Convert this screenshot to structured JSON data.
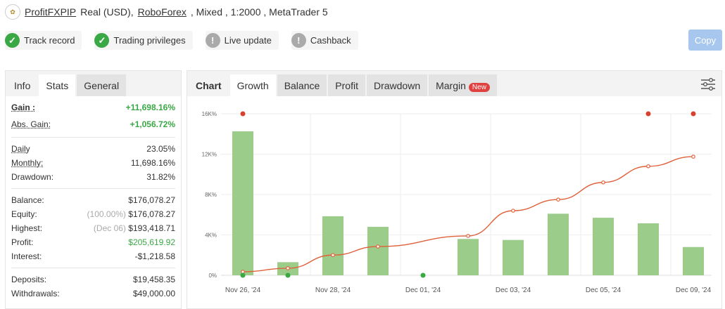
{
  "header": {
    "account": "ProfitFXPIP",
    "type": "Real (USD),",
    "broker": "RoboForex",
    "details": ", Mixed , 1:2000 , MetaTrader 5"
  },
  "badges": [
    {
      "label": "Track record",
      "status": "ok"
    },
    {
      "label": "Trading privileges",
      "status": "ok"
    },
    {
      "label": "Live update",
      "status": "warn"
    },
    {
      "label": "Cashback",
      "status": "warn"
    }
  ],
  "copy_label": "Copy",
  "left_tabs": [
    "Info",
    "Stats",
    "General"
  ],
  "stats": {
    "gain": {
      "label": "Gain :",
      "value": "+11,698.16%"
    },
    "abs_gain": {
      "label": "Abs. Gain:",
      "value": "+1,056.72%"
    },
    "daily": {
      "label": "Daily",
      "value": "23.05%"
    },
    "monthly": {
      "label": "Monthly:",
      "value": "11,698.16%"
    },
    "drawdown": {
      "label": "Drawdown:",
      "value": "31.82%"
    },
    "balance": {
      "label": "Balance:",
      "value": "$176,078.27"
    },
    "equity": {
      "label": "Equity:",
      "note": "(100.00%)",
      "value": "$176,078.27"
    },
    "highest": {
      "label": "Highest:",
      "note": "(Dec 06)",
      "value": "$193,418.71"
    },
    "profit": {
      "label": "Profit:",
      "value": "$205,619.92"
    },
    "interest": {
      "label": "Interest:",
      "value": "-$1,218.58"
    },
    "deposits": {
      "label": "Deposits:",
      "value": "$19,458.35"
    },
    "withdrawals": {
      "label": "Withdrawals:",
      "value": "$49,000.00"
    }
  },
  "chart_tabs": {
    "chart": "Chart",
    "growth": "Growth",
    "balance": "Balance",
    "profit": "Profit",
    "drawdown": "Drawdown",
    "margin": "Margin",
    "new_badge": "New"
  },
  "colors": {
    "bar": "#9ccc8a",
    "line": "#e0603a",
    "red_marker": "#d9412f",
    "green_marker": "#3aa845",
    "copy": "#a7c7ee"
  },
  "chart_data": {
    "type": "bar",
    "ylim": [
      0,
      16000
    ],
    "yticks": [
      {
        "v": 0,
        "label": "0%"
      },
      {
        "v": 4000,
        "label": "4K%"
      },
      {
        "v": 8000,
        "label": "8K%"
      },
      {
        "v": 12000,
        "label": "12K%"
      },
      {
        "v": 16000,
        "label": "16K%"
      }
    ],
    "x_labels": [
      "Nov 26, '24",
      "",
      "Nov 28, '24",
      "",
      "Dec 01, '24",
      "",
      "Dec 03, '24",
      "",
      "Dec 05, '24",
      "",
      "Dec 09, '24"
    ],
    "bars": [
      14260,
      1300,
      5850,
      4800,
      0,
      3600,
      3500,
      6100,
      5700,
      5150,
      2800
    ],
    "line": [
      350,
      700,
      2000,
      2850,
      null,
      3900,
      6400,
      7500,
      9200,
      10800,
      11750
    ],
    "red_markers_at": [
      0,
      9,
      10
    ],
    "green_markers_at": [
      0,
      1,
      4
    ],
    "grid": true
  }
}
